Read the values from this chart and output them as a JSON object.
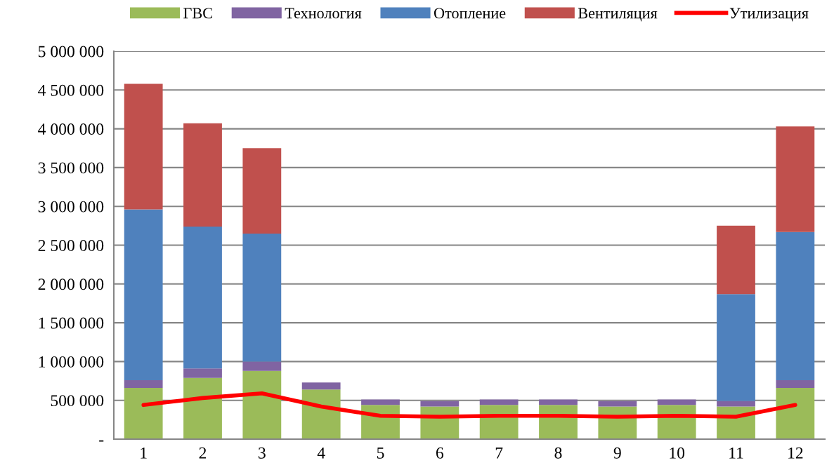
{
  "chart_data": {
    "type": "bar",
    "stacked": true,
    "categories": [
      "1",
      "2",
      "3",
      "4",
      "5",
      "6",
      "7",
      "8",
      "9",
      "10",
      "11",
      "12"
    ],
    "series": [
      {
        "name": "ГВС",
        "color": "#9bbb59",
        "values": [
          660000,
          790000,
          880000,
          640000,
          440000,
          420000,
          440000,
          440000,
          420000,
          440000,
          420000,
          660000
        ]
      },
      {
        "name": "Технология",
        "color": "#8064a2",
        "values": [
          100000,
          120000,
          120000,
          90000,
          70000,
          70000,
          70000,
          70000,
          70000,
          70000,
          70000,
          100000
        ]
      },
      {
        "name": "Отопление",
        "color": "#4f81bd",
        "values": [
          2200000,
          1830000,
          1650000,
          null,
          null,
          null,
          null,
          null,
          null,
          null,
          1380000,
          1910000
        ]
      },
      {
        "name": "Вентиляция",
        "color": "#c0504d",
        "values": [
          1620000,
          1330000,
          1100000,
          null,
          null,
          null,
          null,
          null,
          null,
          null,
          880000,
          1360000
        ]
      },
      {
        "name": "Утилизация",
        "type": "line",
        "color": "#ff0000",
        "values": [
          440000,
          530000,
          590000,
          420000,
          300000,
          290000,
          300000,
          300000,
          290000,
          300000,
          290000,
          440000
        ]
      }
    ],
    "ylim": [
      0,
      5000000
    ],
    "yticks": [
      {
        "value": 0,
        "label": "-"
      },
      {
        "value": 500000,
        "label": "500 000"
      },
      {
        "value": 1000000,
        "label": "1 000 000"
      },
      {
        "value": 1500000,
        "label": "1 500 000"
      },
      {
        "value": 2000000,
        "label": "2 000 000"
      },
      {
        "value": 2500000,
        "label": "2 500 000"
      },
      {
        "value": 3000000,
        "label": "3 000 000"
      },
      {
        "value": 3500000,
        "label": "3 500 000"
      },
      {
        "value": 4000000,
        "label": "4 000 000"
      },
      {
        "value": 4500000,
        "label": "4 500 000"
      },
      {
        "value": 5000000,
        "label": "5 000 000"
      }
    ],
    "grid": "y",
    "legend": "top"
  }
}
